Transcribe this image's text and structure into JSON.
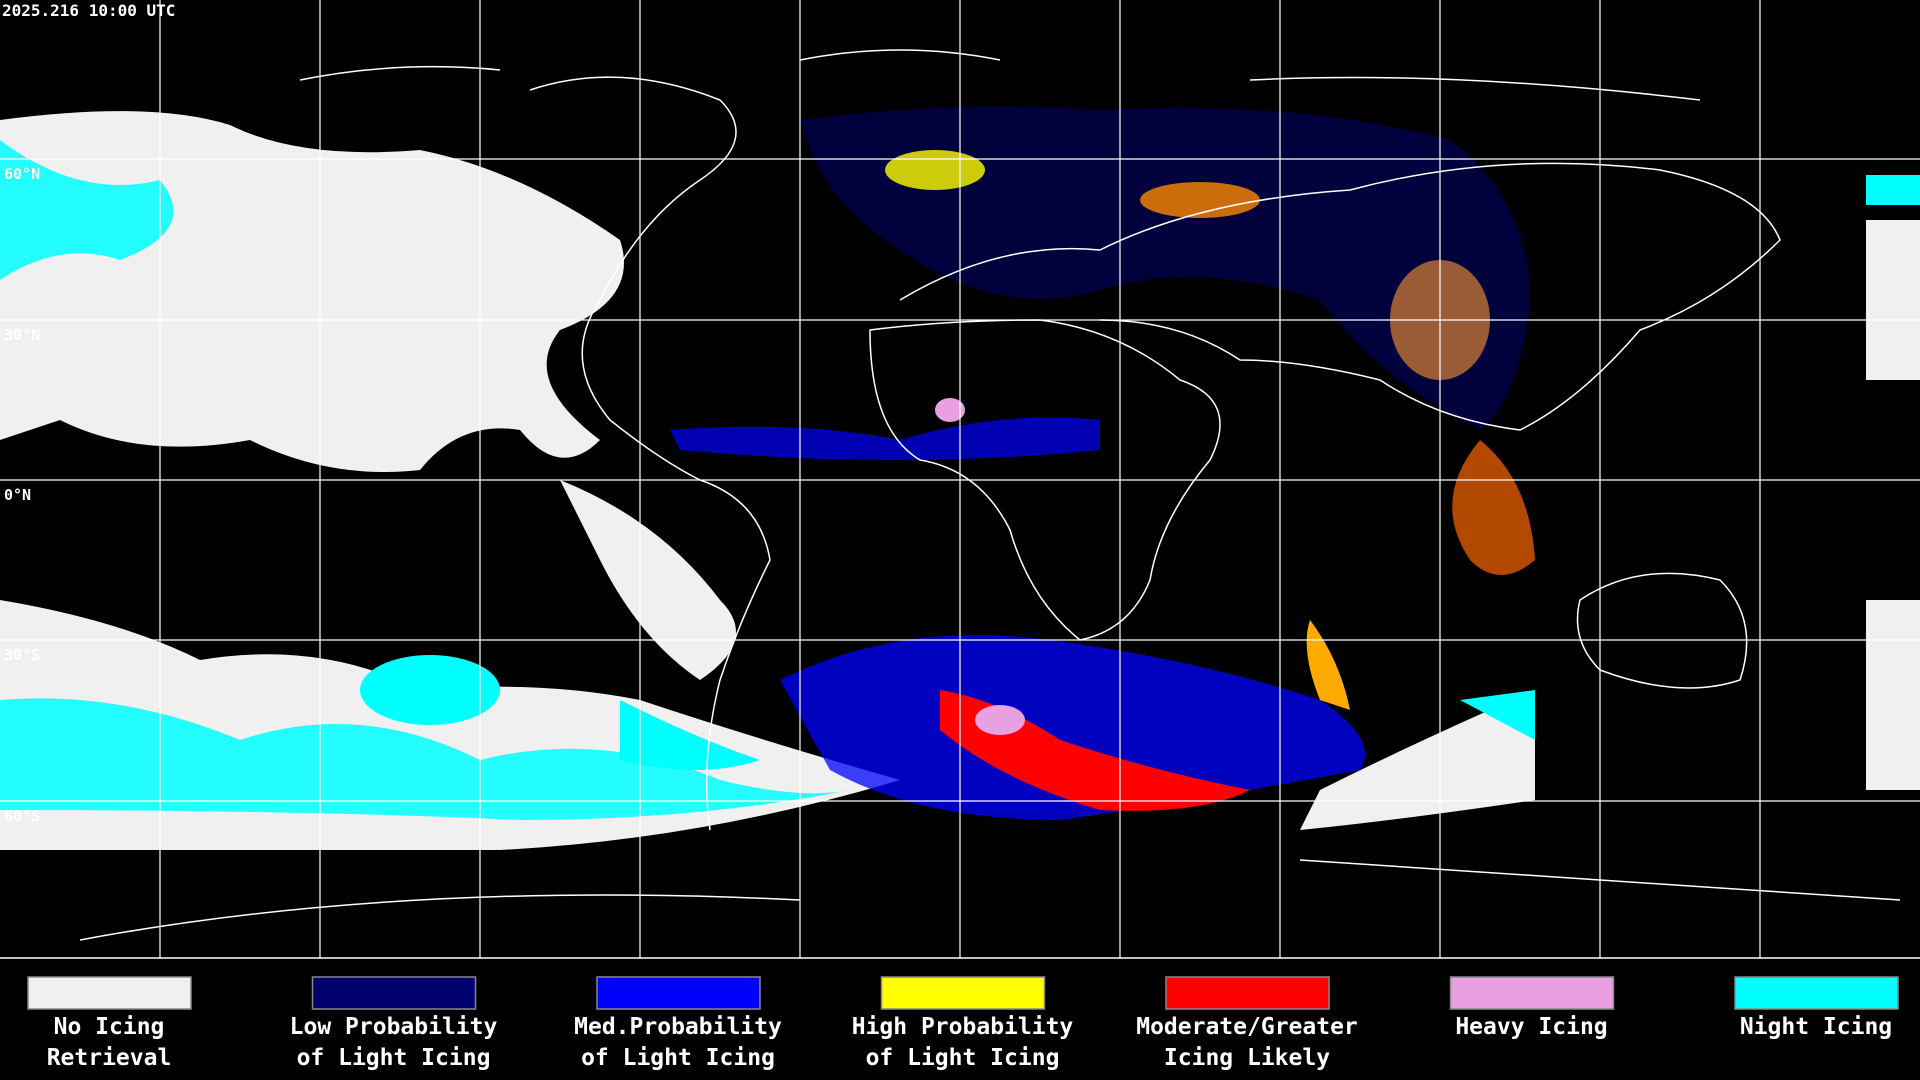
{
  "header": {
    "timestamp": "2025.216 10:00 UTC"
  },
  "map": {
    "latitude_labels": [
      "60°N",
      "30°N",
      "0°N",
      "30°S",
      "60°S"
    ]
  },
  "legend": {
    "items": [
      {
        "label_lines": [
          "No Icing",
          "Retrieval"
        ],
        "color": "#f0f0f0"
      },
      {
        "label_lines": [
          "Low Probability",
          "of Light Icing"
        ],
        "color": "#00006e"
      },
      {
        "label_lines": [
          "Med.Probability",
          "of Light Icing"
        ],
        "color": "#0000ff"
      },
      {
        "label_lines": [
          "High Probability",
          "of Light Icing"
        ],
        "color": "#ffff00"
      },
      {
        "label_lines": [
          "Moderate/Greater",
          "Icing Likely"
        ],
        "color": "#ff0000"
      },
      {
        "label_lines": [
          "Heavy Icing"
        ],
        "color": "#e8a0e0"
      },
      {
        "label_lines": [
          "Night Icing"
        ],
        "color": "#00ffff"
      }
    ]
  }
}
